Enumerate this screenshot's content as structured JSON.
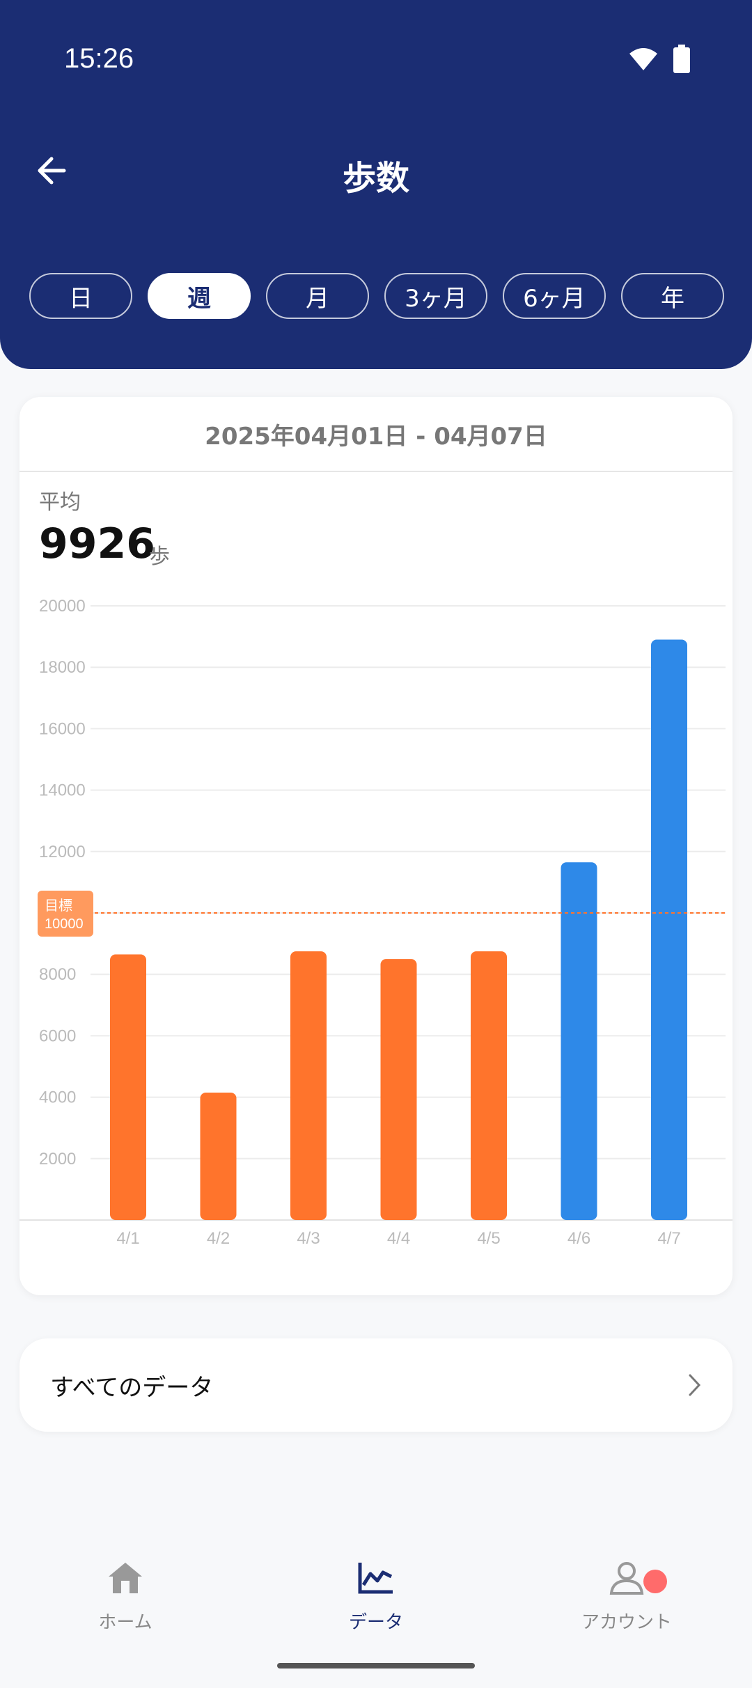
{
  "status_bar": {
    "time": "15:26",
    "icons": [
      "wifi-icon",
      "battery-icon"
    ]
  },
  "header": {
    "title": "歩数",
    "tabs": [
      {
        "label": "日",
        "active": false
      },
      {
        "label": "週",
        "active": true
      },
      {
        "label": "月",
        "active": false
      },
      {
        "label": "3ヶ月",
        "active": false
      },
      {
        "label": "6ヶ月",
        "active": false
      },
      {
        "label": "年",
        "active": false
      }
    ]
  },
  "summary": {
    "date_range": "2025年04月01日 - 04月07日",
    "average_label": "平均",
    "average_value": "9926",
    "unit": "歩"
  },
  "chart_data": {
    "type": "bar",
    "categories": [
      "4/1",
      "4/2",
      "4/3",
      "4/4",
      "4/5",
      "4/6",
      "4/7"
    ],
    "values": [
      8650,
      4150,
      8750,
      8500,
      8750,
      11650,
      18900
    ],
    "yticks": [
      "2000",
      "4000",
      "6000",
      "8000",
      "10000",
      "12000",
      "14000",
      "16000",
      "18000",
      "20000"
    ],
    "ylim": [
      0,
      20000
    ],
    "goal": {
      "label": "目標",
      "value": "10000"
    },
    "colors": {
      "below_goal": "#ff742c",
      "above_goal": "#2e89e8",
      "goal_line": "#ff742c"
    },
    "grid": true
  },
  "all_data": {
    "label": "すべてのデータ"
  },
  "bottom_nav": [
    {
      "label": "ホーム",
      "icon": "home-icon",
      "active": false
    },
    {
      "label": "データ",
      "icon": "chart-icon",
      "active": true
    },
    {
      "label": "アカウント",
      "icon": "account-icon",
      "active": false,
      "badge": true
    }
  ],
  "colors": {
    "header_bg": "#1b2d73",
    "page_bg": "#f7f8fa",
    "badge": "#ff6b6b"
  }
}
